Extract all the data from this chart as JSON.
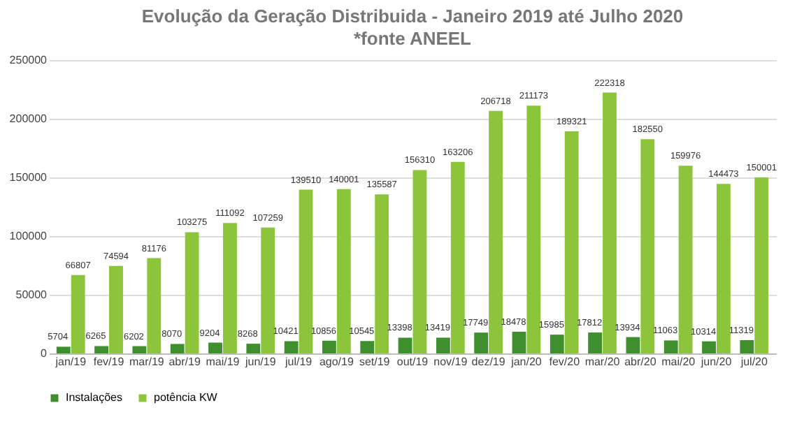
{
  "chart_data": {
    "type": "bar",
    "title": "Evolução da Geração Distribuida - Janeiro 2019 até Julho 2020",
    "subtitle": "*fonte ANEEL",
    "categories": [
      "jan/19",
      "fev/19",
      "mar/19",
      "abr/19",
      "mai/19",
      "jun/19",
      "jul/19",
      "ago/19",
      "set/19",
      "out/19",
      "nov/19",
      "dez/19",
      "jan/20",
      "fev/20",
      "mar/20",
      "abr/20",
      "mai/20",
      "jun/20",
      "jul/20"
    ],
    "series": [
      {
        "name": "Instalações",
        "color": "#3f8f2f",
        "values": [
          5704,
          6265,
          6202,
          8070,
          9204,
          8268,
          10421,
          10856,
          10545,
          13398,
          13419,
          17749,
          18478,
          15985,
          17812,
          13934,
          11063,
          10314,
          11319
        ]
      },
      {
        "name": "potência KW",
        "color": "#8cc43c",
        "values": [
          66807,
          74594,
          81176,
          103275,
          111092,
          107259,
          139510,
          140001,
          135587,
          156310,
          163206,
          206718,
          211173,
          189321,
          222318,
          182550,
          159976,
          144473,
          150001
        ]
      }
    ],
    "ylim": [
      0,
      250000
    ],
    "yticks": [
      0,
      50000,
      100000,
      150000,
      200000,
      250000
    ],
    "grid": "y",
    "legend": "bottom",
    "data_labels": true
  }
}
